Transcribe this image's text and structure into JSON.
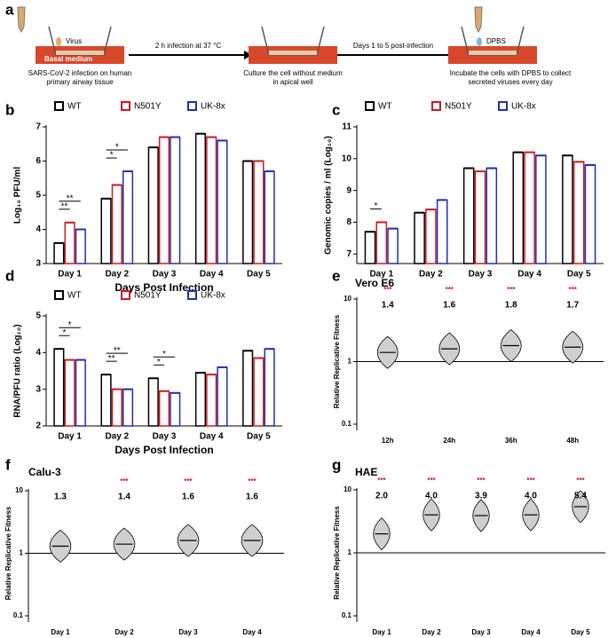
{
  "schematic": {
    "panel": "a",
    "virus": "Virus",
    "medium": "Basal medium",
    "step1": [
      "SARS-CoV-2 infection on human",
      "primary airway tissue"
    ],
    "arrow1": "2 h infection  at 37 °C",
    "step2": [
      "Culture the cell without medium",
      "in apical well"
    ],
    "arrow2": "Days 1 to 5 post-infection",
    "reagent": "DPBS",
    "step3": [
      "Incubate the cells with DPBS to collect",
      "secreted viruses every day"
    ]
  },
  "chart_data": [
    {
      "panel": "b",
      "type": "bar",
      "ylabel": "Log₁₀ PFU/ml",
      "xlabel": "Days Post Infection",
      "legend": "top",
      "categories": [
        "Day 1",
        "Day 2",
        "Day 3",
        "Day 4",
        "Day 5"
      ],
      "series": [
        {
          "name": "WT",
          "color": "#000000",
          "values": [
            3.6,
            4.9,
            6.4,
            6.8,
            6.0
          ]
        },
        {
          "name": "N501Y",
          "color": "#d0191f",
          "values": [
            4.2,
            5.3,
            6.7,
            6.7,
            6.0
          ]
        },
        {
          "name": "UK-8x",
          "color": "#1f2fb0",
          "values": [
            4.0,
            5.7,
            6.7,
            6.6,
            5.7
          ]
        }
      ],
      "ylim": [
        3,
        7
      ],
      "yticks": [
        3,
        4,
        5,
        6,
        7
      ],
      "annotations": [
        {
          "text": "**",
          "category": "Day 1",
          "between": [
            "WT",
            "N501Y"
          ]
        },
        {
          "text": "**",
          "category": "Day 1",
          "between": [
            "WT",
            "UK-8x"
          ]
        },
        {
          "text": "*",
          "category": "Day 2",
          "between": [
            "WT",
            "N501Y"
          ]
        },
        {
          "text": "*",
          "category": "Day 2",
          "between": [
            "WT",
            "UK-8x"
          ]
        }
      ]
    },
    {
      "panel": "c",
      "type": "bar",
      "ylabel": "Genomic copies / ml (Log₁₀)",
      "legend": "top",
      "categories": [
        "Day 1",
        "Day 2",
        "Day 3",
        "Day 4",
        "Day 5"
      ],
      "series": [
        {
          "name": "WT",
          "color": "#000000",
          "values": [
            7.7,
            8.3,
            9.7,
            10.2,
            10.1
          ]
        },
        {
          "name": "N501Y",
          "color": "#d0191f",
          "values": [
            8.0,
            8.4,
            9.6,
            10.2,
            9.9
          ]
        },
        {
          "name": "UK-8x",
          "color": "#1f2fb0",
          "values": [
            7.8,
            8.7,
            9.7,
            10.1,
            9.8
          ]
        }
      ],
      "ylim": [
        6.7,
        11
      ],
      "yticks": [
        7,
        8,
        9,
        10,
        11
      ],
      "annotations": [
        {
          "text": "*",
          "category": "Day 1",
          "between": [
            "WT",
            "N501Y"
          ]
        }
      ]
    },
    {
      "panel": "d",
      "type": "bar",
      "ylabel": "RNA/PFU ratio (Log₁₀)",
      "xlabel": "Days Post Infection",
      "legend": "top",
      "categories": [
        "Day 1",
        "Day 2",
        "Day 3",
        "Day 4",
        "Day 5"
      ],
      "series": [
        {
          "name": "WT",
          "color": "#000000",
          "values": [
            4.1,
            3.4,
            3.3,
            3.45,
            4.05
          ]
        },
        {
          "name": "N501Y",
          "color": "#d0191f",
          "values": [
            3.8,
            3.0,
            2.95,
            3.4,
            3.85
          ]
        },
        {
          "name": "UK-8x",
          "color": "#1f2fb0",
          "values": [
            3.8,
            3.0,
            2.9,
            3.6,
            4.1
          ]
        }
      ],
      "ylim": [
        2,
        5
      ],
      "yticks": [
        2,
        3,
        4,
        5
      ],
      "annotations": [
        {
          "text": "*",
          "category": "Day 1",
          "between": [
            "WT",
            "N501Y"
          ]
        },
        {
          "text": "*",
          "category": "Day 1",
          "between": [
            "WT",
            "UK-8x"
          ]
        },
        {
          "text": "**",
          "category": "Day 2",
          "between": [
            "WT",
            "N501Y"
          ]
        },
        {
          "text": "**",
          "category": "Day 2",
          "between": [
            "WT",
            "UK-8x"
          ]
        },
        {
          "text": "*",
          "category": "Day 3",
          "between": [
            "WT",
            "N501Y"
          ]
        },
        {
          "text": "*",
          "category": "Day 3",
          "between": [
            "WT",
            "UK-8x"
          ]
        }
      ]
    },
    {
      "panel": "e",
      "type": "violin",
      "title": "Vero E6",
      "ylabel": "Relative Replicative Fitness",
      "categories": [
        "12h",
        "24h",
        "36h",
        "48h"
      ],
      "values": [
        1.4,
        1.6,
        1.8,
        1.7
      ],
      "significance": [
        "***",
        "***",
        "***",
        "***"
      ],
      "color": "#d0191f",
      "log_scale": true,
      "ylim": [
        0.1,
        10
      ],
      "yticks": [
        0.1,
        1,
        10
      ],
      "hline": 1
    },
    {
      "panel": "f",
      "type": "violin",
      "title": "Calu-3",
      "ylabel": "Relative Replicative Fitness",
      "categories": [
        "Day 1",
        "Day 2",
        "Day 3",
        "Day 4"
      ],
      "values": [
        1.3,
        1.4,
        1.6,
        1.6
      ],
      "significance": [
        null,
        "***",
        "***",
        "***"
      ],
      "color": "#d0191f",
      "log_scale": true,
      "ylim": [
        0.1,
        10
      ],
      "yticks": [
        0.1,
        1,
        10
      ],
      "hline": 1
    },
    {
      "panel": "g",
      "type": "violin",
      "title": "HAE",
      "ylabel": "Relative Replicative Fitness",
      "categories": [
        "Day 1",
        "Day 2",
        "Day 3",
        "Day 4",
        "Day 5"
      ],
      "values": [
        2.0,
        4.0,
        3.9,
        4.0,
        5.4
      ],
      "value_labels": [
        "2.0",
        "4.0",
        "3.9",
        "4.0",
        "5.4"
      ],
      "significance": [
        "***",
        "***",
        "***",
        "***",
        "***"
      ],
      "color": "#d0191f",
      "log_scale": true,
      "ylim": [
        0.1,
        10
      ],
      "yticks": [
        0.1,
        1,
        10
      ],
      "hline": 1
    }
  ]
}
